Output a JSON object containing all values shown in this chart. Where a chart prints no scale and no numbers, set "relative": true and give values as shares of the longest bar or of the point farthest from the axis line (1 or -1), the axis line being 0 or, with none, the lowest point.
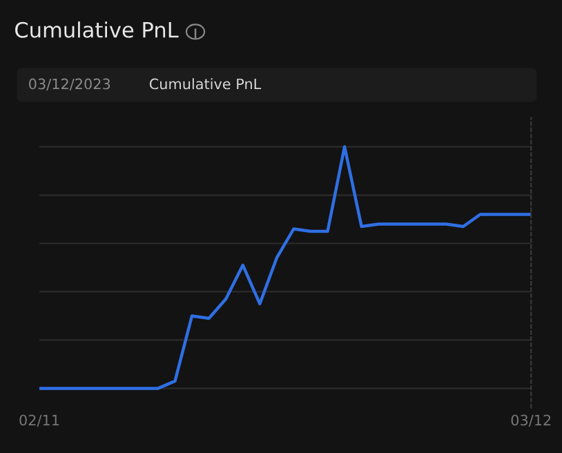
{
  "chart_data": {
    "type": "line",
    "title": "Cumulative PnL",
    "annotations": [
      "03/12/2023",
      "Cumulative PnL"
    ],
    "relative": true,
    "x": [
      "2023-02-11",
      "2023-02-12",
      "2023-02-13",
      "2023-02-14",
      "2023-02-15",
      "2023-02-16",
      "2023-02-17",
      "2023-02-18",
      "2023-02-19",
      "2023-02-20",
      "2023-02-21",
      "2023-02-22",
      "2023-02-23",
      "2023-02-24",
      "2023-02-25",
      "2023-02-26",
      "2023-02-27",
      "2023-02-28",
      "2023-03-01",
      "2023-03-02",
      "2023-03-03",
      "2023-03-04",
      "2023-03-05",
      "2023-03-06",
      "2023-03-07",
      "2023-03-08",
      "2023-03-09",
      "2023-03-10",
      "2023-03-11",
      "2023-03-12"
    ],
    "series": [
      {
        "color": "#2f6fe4",
        "values": [
          0,
          0,
          0,
          0,
          0,
          0,
          0,
          0,
          0.03,
          0.3,
          0.29,
          0.37,
          0.51,
          0.35,
          0.54,
          0.66,
          0.65,
          0.65,
          1,
          0.67,
          0.68,
          0.68,
          0.68,
          0.68,
          0.68,
          0.67,
          0.72,
          0.72,
          0.72,
          0.72
        ]
      }
    ],
    "xlim": [
      "2023-02-11",
      "2023-03-12"
    ],
    "xticks": [
      {
        "value": "2023-02-11",
        "label": "02/11"
      },
      {
        "value": "2023-03-12",
        "label": "03/12"
      }
    ],
    "grid": "y",
    "marker": "none",
    "line_style": "solid"
  }
}
